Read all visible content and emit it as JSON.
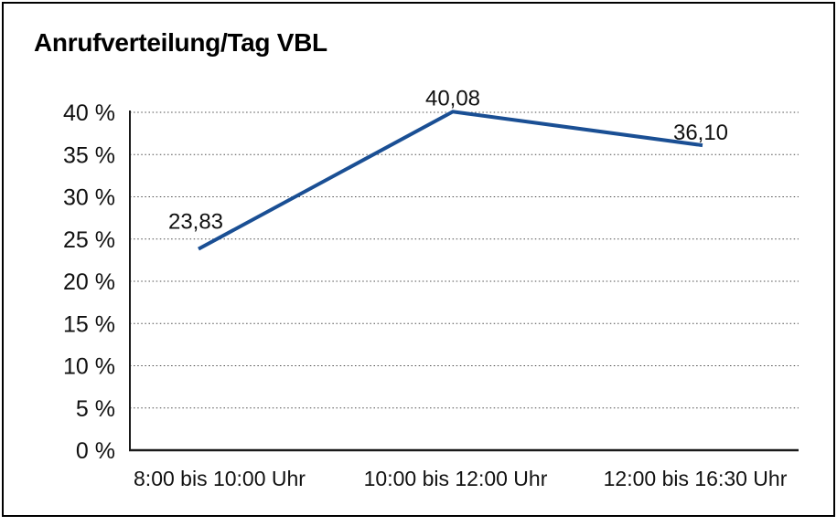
{
  "chart": {
    "title": "Anrufverteilung/Tag VBL"
  },
  "chart_data": {
    "type": "line",
    "title": "Anrufverteilung/Tag VBL",
    "categories": [
      "8:00 bis 10:00 Uhr",
      "10:00 bis 12:00 Uhr",
      "12:00 bis 16:30 Uhr"
    ],
    "values": [
      23.83,
      40.08,
      36.1
    ],
    "data_labels": [
      "23,83",
      "40,08",
      "36,10"
    ],
    "ytick_labels": [
      "0 %",
      "5 %",
      "10 %",
      "15 %",
      "20 %",
      "25 %",
      "30 %",
      "35 %",
      "40 %"
    ],
    "ylim": [
      0,
      40
    ],
    "ytick_step": 5,
    "xlabel": "",
    "ylabel": "",
    "legend": "none",
    "grid": "horizontal dotted",
    "line_color": "#1A4F94",
    "axis_color": "#1a1a1a",
    "grid_color": "#4d4d4d",
    "text_color": "#111111"
  }
}
